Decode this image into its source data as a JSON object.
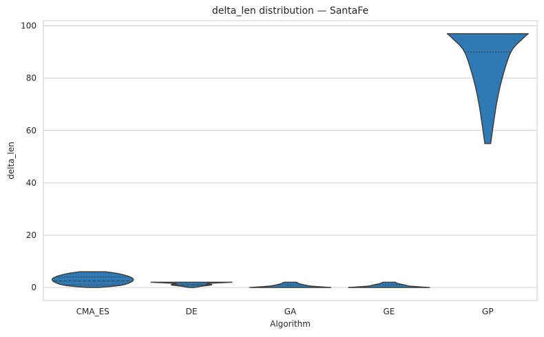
{
  "chart_data": {
    "type": "violin",
    "title": "delta_len distribution — SantaFe",
    "xlabel": "Algorithm",
    "ylabel": "delta_len",
    "categories": [
      "CMA_ES",
      "DE",
      "GA",
      "GE",
      "GP"
    ],
    "ylim": [
      -5,
      102
    ],
    "yticks": [
      0,
      20,
      40,
      60,
      80,
      100
    ],
    "grid": "y",
    "color": "#2f7ab5",
    "edge_color": "#3d3d3d",
    "violins": [
      {
        "category": "CMA_ES",
        "min": 0,
        "max": 6,
        "q1": 1,
        "median": 2.5,
        "q3": 4,
        "density": [
          [
            0,
            0.12
          ],
          [
            0.8,
            0.55
          ],
          [
            2,
            0.75
          ],
          [
            3.2,
            0.8
          ],
          [
            4.3,
            0.7
          ],
          [
            5.3,
            0.5
          ],
          [
            6,
            0.25
          ]
        ]
      },
      {
        "category": "DE",
        "min": 0,
        "max": 2,
        "q1": 1,
        "median": 1,
        "q3": 2,
        "density": [
          [
            0,
            0.12
          ],
          [
            0.5,
            0.45
          ],
          [
            1,
            0.9
          ],
          [
            1.5,
            0.7
          ],
          [
            2,
            1.8
          ]
        ]
      },
      {
        "category": "GA",
        "min": 0,
        "max": 2,
        "q1": 0,
        "median": 0,
        "q3": 1,
        "density": [
          [
            0,
            1.6
          ],
          [
            0.5,
            0.85
          ],
          [
            1,
            0.55
          ],
          [
            1.5,
            0.35
          ],
          [
            2,
            0.25
          ]
        ]
      },
      {
        "category": "GE",
        "min": 0,
        "max": 2,
        "q1": 0,
        "median": 0,
        "q3": 1,
        "density": [
          [
            0,
            1.6
          ],
          [
            0.5,
            0.85
          ],
          [
            1,
            0.6
          ],
          [
            1.5,
            0.35
          ],
          [
            2,
            0.25
          ]
        ]
      },
      {
        "category": "GP",
        "min": 55,
        "max": 97,
        "q1": 90,
        "median": 97,
        "q3": 97,
        "density": [
          [
            55,
            0.005
          ],
          [
            70,
            0.015
          ],
          [
            80,
            0.025
          ],
          [
            90,
            0.04
          ],
          [
            95,
            0.06
          ],
          [
            97,
            0.07
          ]
        ]
      }
    ]
  }
}
